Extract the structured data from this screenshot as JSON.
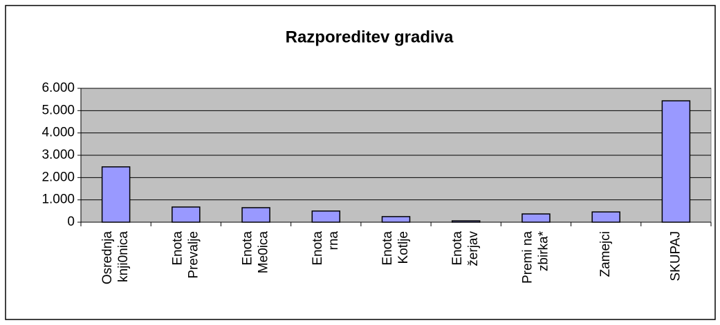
{
  "chart_data": {
    "type": "bar",
    "title": "Razporeditev gradiva",
    "categories": [
      [
        "Osrednja",
        "knji0nica"
      ],
      [
        "Enota",
        "Prevalje"
      ],
      [
        "Enota",
        "Me0ica"
      ],
      [
        "Enota",
        "rna"
      ],
      [
        "Enota",
        "Kotlje"
      ],
      [
        "Enota",
        "žerjav"
      ],
      [
        "Premi na",
        "zbirka*"
      ],
      [
        "Zamejci"
      ],
      [
        "SKUPAJ"
      ]
    ],
    "values": [
      2480,
      680,
      650,
      500,
      250,
      60,
      370,
      460,
      5440
    ],
    "color": "#9999ff",
    "ylim": [
      0,
      6000
    ],
    "yticks": [
      0,
      {
        "value": 1000,
        "label": "1.000"
      },
      {
        "value": 2000,
        "label": "2.000"
      },
      {
        "value": 3000,
        "label": "3.000"
      },
      {
        "value": 4000,
        "label": "4.000"
      },
      {
        "value": 5000,
        "label": "5.000"
      },
      {
        "value": 6000,
        "label": "6.000"
      }
    ],
    "grid": true
  }
}
